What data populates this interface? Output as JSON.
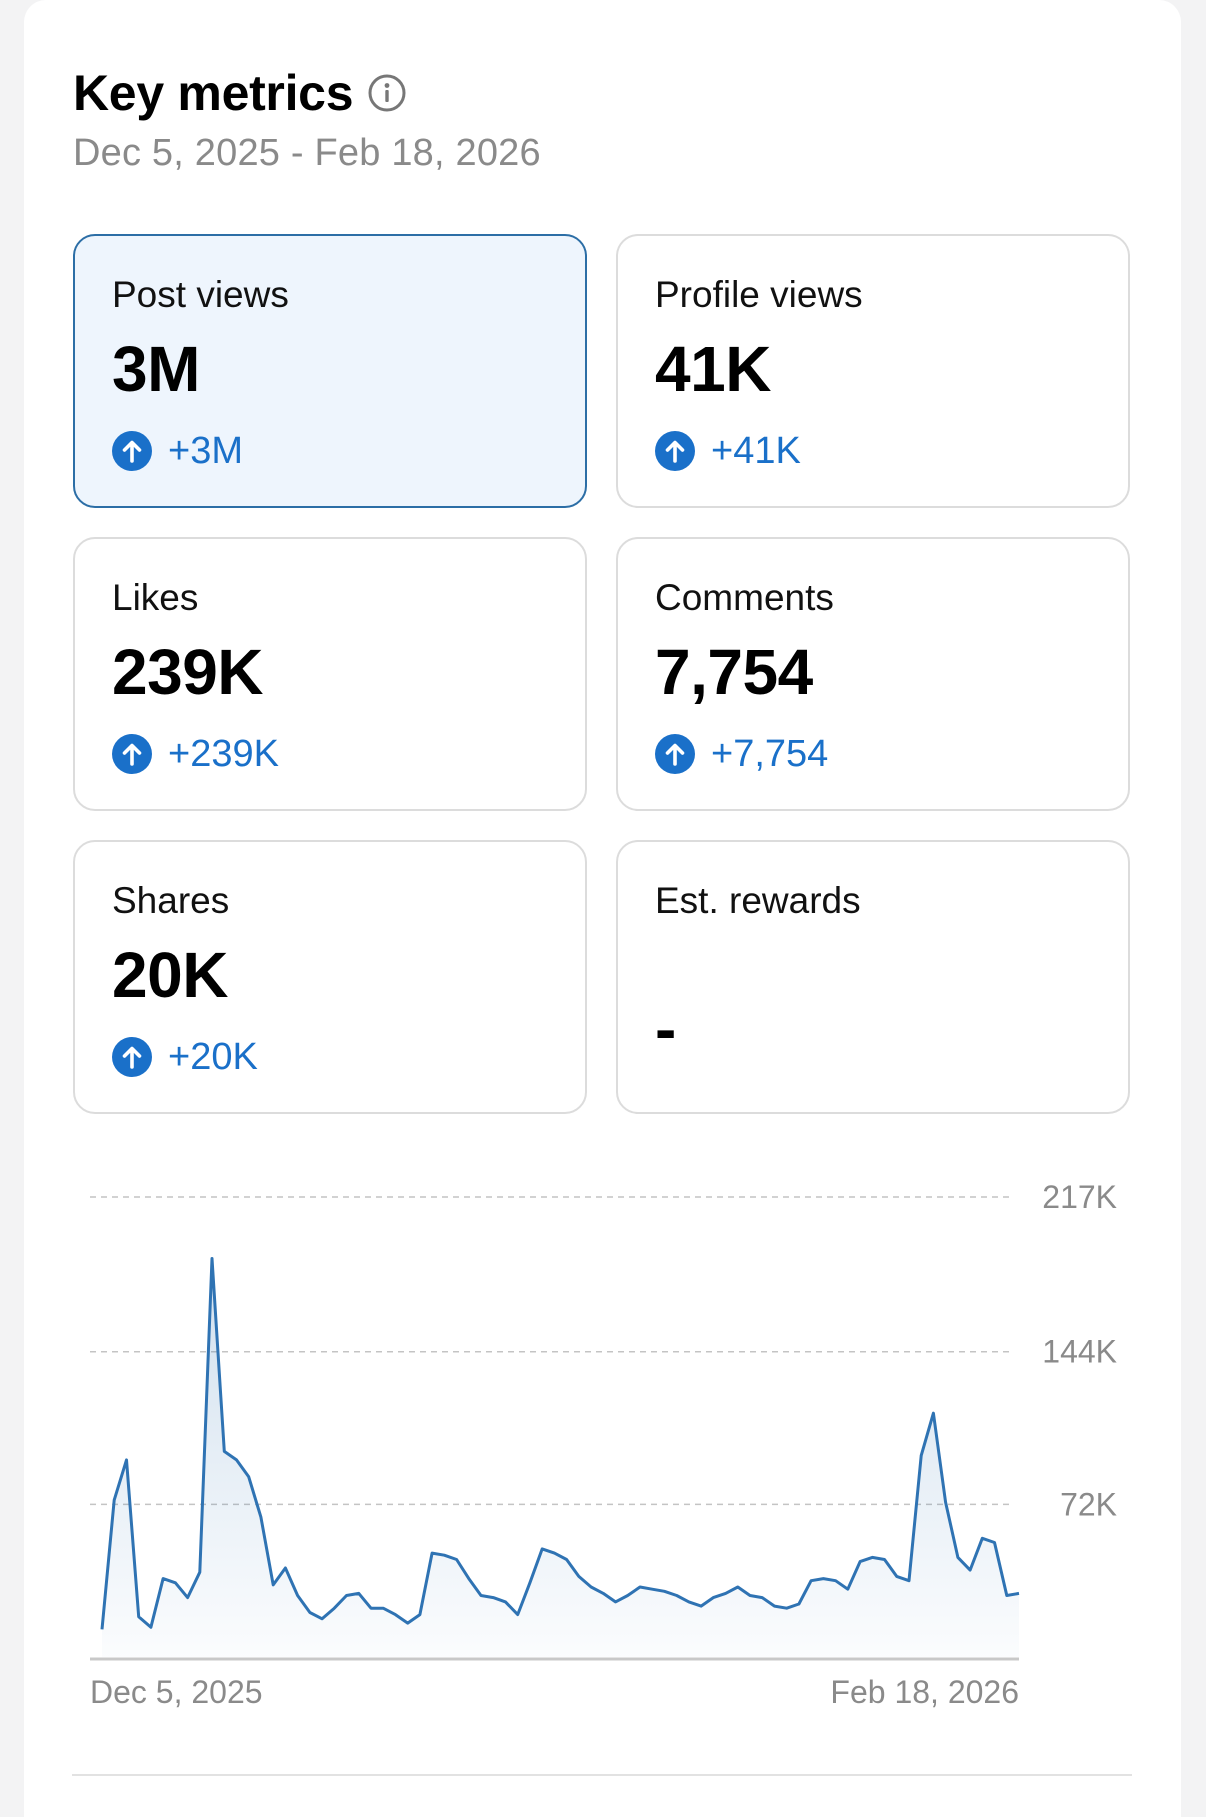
{
  "header": {
    "title": "Key metrics",
    "info_icon": "info-icon",
    "date_range": "Dec 5, 2025 - Feb 18, 2026"
  },
  "colors": {
    "accent": "#1a70c9",
    "line": "#2f73b3",
    "selected_card_bg": "#eef5fd",
    "selected_card_border": "#2c6ea6",
    "muted_text": "#8a8a8a"
  },
  "metrics": [
    {
      "label": "Post views",
      "value": "3M",
      "change": "+3M",
      "icon": "arrow-up-icon",
      "selected": true
    },
    {
      "label": "Profile views",
      "value": "41K",
      "change": "+41K",
      "icon": "arrow-up-icon",
      "selected": false
    },
    {
      "label": "Likes",
      "value": "239K",
      "change": "+239K",
      "icon": "arrow-up-icon",
      "selected": false
    },
    {
      "label": "Comments",
      "value": "7,754",
      "change": "+7,754",
      "icon": "arrow-up-icon",
      "selected": false
    },
    {
      "label": "Shares",
      "value": "20K",
      "change": "+20K",
      "icon": "arrow-up-icon",
      "selected": false
    },
    {
      "label": "Est. rewards",
      "value": "-",
      "change": "",
      "icon": "",
      "selected": false
    }
  ],
  "chart_data": {
    "type": "area",
    "title": "",
    "xlabel": "",
    "ylabel": "",
    "x_tick_labels": [
      "Dec 5, 2025",
      "Feb 18, 2026"
    ],
    "y_tick_labels": [
      "217K",
      "144K",
      "72K"
    ],
    "y_ticks": [
      217000,
      144000,
      72000
    ],
    "ylim": [
      0,
      217000
    ],
    "grid": true,
    "series": [
      {
        "values": [
          13000,
          74000,
          93000,
          19000,
          14000,
          37000,
          35000,
          28000,
          40000,
          188000,
          97000,
          93000,
          85000,
          66000,
          34000,
          42000,
          29000,
          21000,
          18000,
          23000,
          29000,
          30000,
          23000,
          23000,
          20000,
          16000,
          20000,
          49000,
          48000,
          46000,
          37000,
          29000,
          28000,
          26000,
          20000,
          35000,
          51000,
          49000,
          46000,
          38000,
          33000,
          30000,
          26000,
          29000,
          33000,
          32000,
          31000,
          29000,
          26000,
          24000,
          28000,
          30000,
          33000,
          29000,
          28000,
          24000,
          23000,
          25000,
          36000,
          37000,
          36000,
          32000,
          45000,
          47000,
          46000,
          38000,
          36000,
          95000,
          115000,
          73000,
          47000,
          41000,
          56000,
          54000,
          29000,
          30000
        ]
      }
    ]
  }
}
